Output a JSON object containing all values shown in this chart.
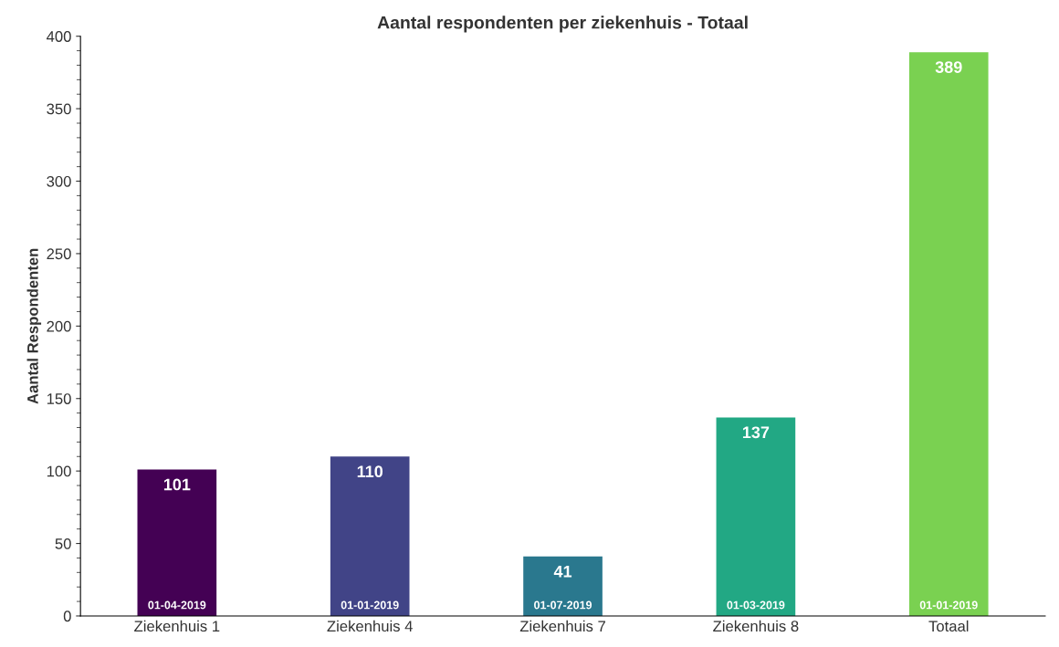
{
  "chart_data": {
    "type": "bar",
    "title": "Aantal respondenten per ziekenhuis - Totaal",
    "ylabel": "Aantal Respondenten",
    "categories": [
      "Ziekenhuis 1",
      "Ziekenhuis 4",
      "Ziekenhuis 7",
      "Ziekenhuis 8",
      "Totaal"
    ],
    "values": [
      101,
      110,
      41,
      137,
      389
    ],
    "colors": [
      "#440154",
      "#414487",
      "#2a788e",
      "#22a884",
      "#7ad151"
    ],
    "ylim": [
      0,
      400
    ],
    "yticks": [
      0,
      50,
      100,
      150,
      200,
      250,
      300,
      350,
      400
    ],
    "grid": false,
    "data_labels": true,
    "annotations": [
      {
        "text": "01-04-2019",
        "x": "Ziekenhuis 1",
        "y": 0
      },
      {
        "text": "01-01-2019",
        "x": "Ziekenhuis 4",
        "y": 0
      },
      {
        "text": "01-07-2019",
        "x": "Ziekenhuis 7",
        "y": 0
      },
      {
        "text": "01-03-2019",
        "x": "Ziekenhuis 8",
        "y": 0
      },
      {
        "text": "01-01-2019",
        "x": "Totaal",
        "y": 0
      }
    ]
  }
}
